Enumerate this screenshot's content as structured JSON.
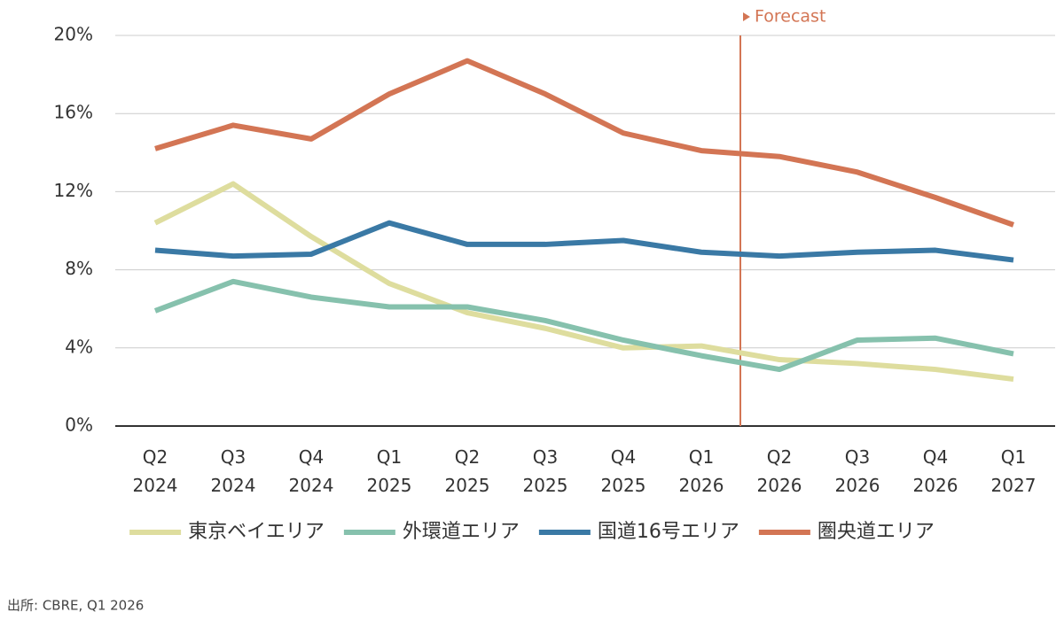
{
  "chart_data": {
    "type": "line",
    "categories": [
      "Q2 2024",
      "Q3 2024",
      "Q4 2024",
      "Q1 2025",
      "Q2 2025",
      "Q3 2025",
      "Q4 2025",
      "Q1 2026",
      "Q2 2026",
      "Q3 2026",
      "Q4 2026",
      "Q1 2027"
    ],
    "series": [
      {
        "name": "東京ベイエリア",
        "color": "#dedd9e",
        "values": [
          10.4,
          12.4,
          9.7,
          7.3,
          5.8,
          5.0,
          4.0,
          4.1,
          3.4,
          3.2,
          2.9,
          2.4
        ]
      },
      {
        "name": "外環道エリア",
        "color": "#86c1ad",
        "values": [
          5.9,
          7.4,
          6.6,
          6.1,
          6.1,
          5.4,
          4.4,
          3.6,
          2.9,
          4.4,
          4.5,
          3.7
        ]
      },
      {
        "name": "国道16号エリア",
        "color": "#3a79a5",
        "values": [
          9.0,
          8.7,
          8.8,
          10.4,
          9.3,
          9.3,
          9.5,
          8.9,
          8.7,
          8.9,
          9.0,
          8.5
        ]
      },
      {
        "name": "圏央道エリア",
        "color": "#d37554",
        "values": [
          14.2,
          15.4,
          14.7,
          17.0,
          18.7,
          17.0,
          15.0,
          14.1,
          13.8,
          13.0,
          11.7,
          10.3
        ]
      }
    ],
    "ylim": [
      0,
      20
    ],
    "yticks": [
      {
        "value": 0,
        "label": "0%"
      },
      {
        "value": 4,
        "label": "4%"
      },
      {
        "value": 8,
        "label": "8%"
      },
      {
        "value": 12,
        "label": "12%"
      },
      {
        "value": 16,
        "label": "16%"
      },
      {
        "value": 20,
        "label": "20%"
      }
    ],
    "grid": true,
    "legend": "bottom",
    "forecast": {
      "label": "Forecast",
      "at": 7.5,
      "color": "#d37554"
    },
    "source": "出所: CBRE, Q1 2026"
  }
}
